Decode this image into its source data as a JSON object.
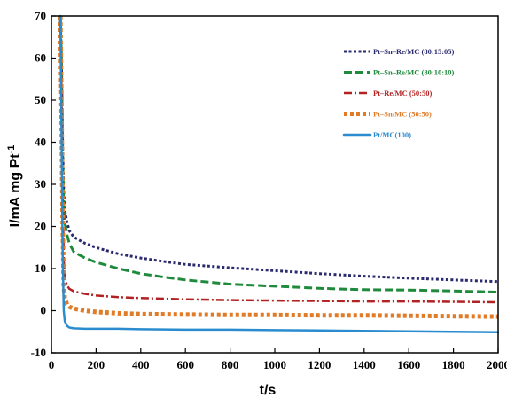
{
  "chart_data": {
    "type": "line",
    "title": "",
    "xlabel": "t/s",
    "ylabel": "I/mA mg Pt",
    "ylabel_superscript": "-1",
    "xlim": [
      0,
      2000
    ],
    "ylim": [
      -10,
      70
    ],
    "xticks": [
      0,
      200,
      400,
      600,
      800,
      1000,
      1200,
      1400,
      1600,
      1800,
      2000
    ],
    "yticks": [
      -10,
      0,
      10,
      20,
      30,
      40,
      50,
      60,
      70
    ],
    "grid": false,
    "legend_position": "top-right",
    "series": [
      {
        "name": "Pt–Sn–Re/MC (80:15:05)",
        "color": "#2a2a6e",
        "dash": "dotted",
        "x": [
          40,
          45,
          50,
          55,
          60,
          70,
          80,
          100,
          150,
          200,
          300,
          400,
          500,
          600,
          800,
          1000,
          1200,
          1400,
          1600,
          1800,
          2000
        ],
        "y": [
          70,
          60,
          40,
          28,
          24,
          21,
          19,
          17.5,
          16,
          15,
          13.5,
          12.5,
          11.7,
          11,
          10.2,
          9.5,
          8.8,
          8.2,
          7.7,
          7.3,
          6.9
        ]
      },
      {
        "name": "Pt–Sn–Re/MC (80:10:10)",
        "color": "#1f8a3c",
        "dash": "dashed",
        "x": [
          40,
          45,
          50,
          55,
          60,
          70,
          80,
          100,
          150,
          200,
          300,
          400,
          500,
          600,
          800,
          1000,
          1200,
          1400,
          1600,
          1800,
          2000
        ],
        "y": [
          70,
          60,
          38,
          25,
          21,
          18,
          16,
          14,
          12.5,
          11.5,
          10,
          8.8,
          8,
          7.3,
          6.3,
          5.8,
          5.3,
          5,
          4.9,
          4.7,
          4.4
        ]
      },
      {
        "name": "Pt–Re/MC (50:50)",
        "color": "#b22222",
        "dash": "dashdot",
        "x": [
          40,
          45,
          50,
          55,
          60,
          70,
          80,
          100,
          150,
          200,
          300,
          400,
          600,
          800,
          1000,
          1200,
          1400,
          1600,
          1800,
          2000
        ],
        "y": [
          70,
          55,
          30,
          12,
          8,
          6,
          5.2,
          4.6,
          4,
          3.6,
          3.2,
          3,
          2.7,
          2.5,
          2.4,
          2.3,
          2.2,
          2.2,
          2.1,
          2
        ]
      },
      {
        "name": "Pt–Sn/MC (50:50)",
        "color": "#e07b28",
        "dash": "squares",
        "x": [
          40,
          45,
          50,
          55,
          60,
          70,
          80,
          100,
          150,
          200,
          300,
          400,
          600,
          800,
          1000,
          1200,
          1400,
          1600,
          1800,
          2000
        ],
        "y": [
          70,
          50,
          22,
          6,
          3,
          1.5,
          0.9,
          0.5,
          0,
          -0.3,
          -0.6,
          -0.8,
          -0.9,
          -1,
          -1,
          -1.1,
          -1.1,
          -1.2,
          -1.3,
          -1.4
        ]
      },
      {
        "name": "Pt/MC(100)",
        "color": "#2a8ccf",
        "dash": "solid",
        "x": [
          40,
          45,
          50,
          55,
          60,
          70,
          80,
          100,
          150,
          200,
          300,
          400,
          600,
          800,
          1000,
          1200,
          1400,
          1600,
          1800,
          2000
        ],
        "y": [
          70,
          45,
          15,
          0,
          -2.5,
          -3.6,
          -4,
          -4.2,
          -4.3,
          -4.3,
          -4.3,
          -4.4,
          -4.5,
          -4.5,
          -4.6,
          -4.7,
          -4.8,
          -4.9,
          -5,
          -5.1
        ]
      }
    ]
  }
}
